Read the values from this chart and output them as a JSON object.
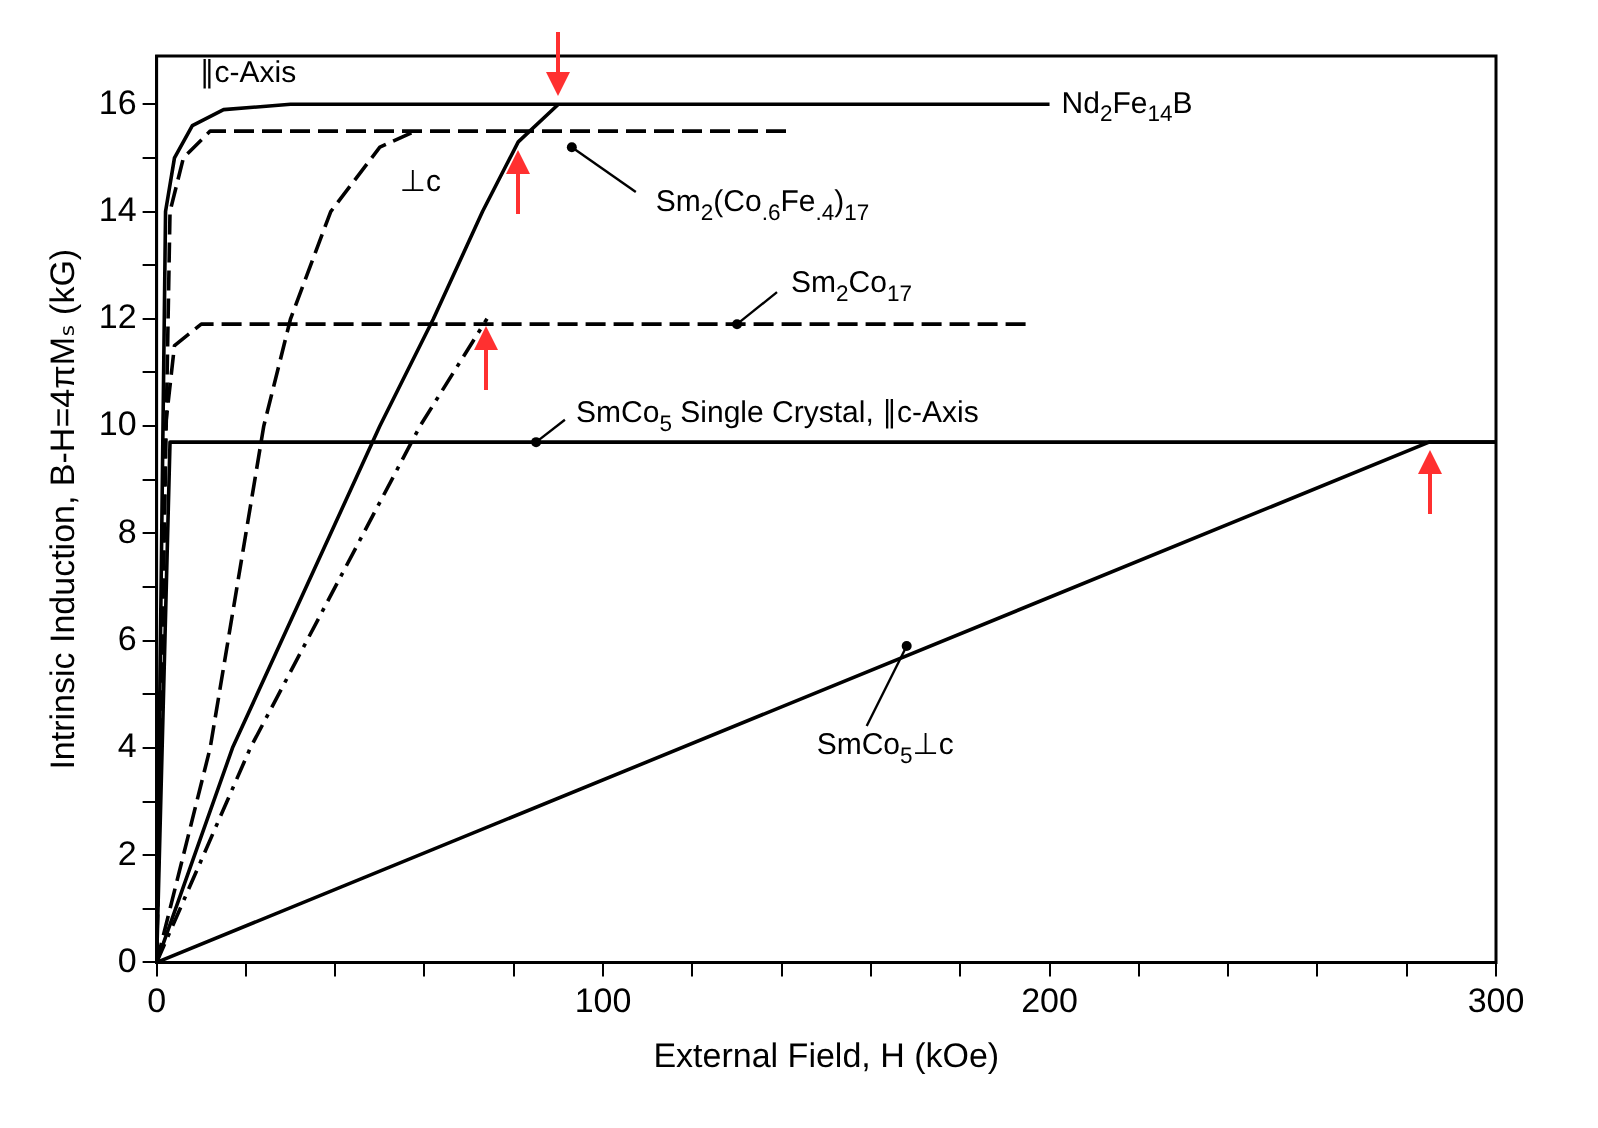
{
  "chart_data": {
    "type": "line",
    "xlabel": "External Field, H (kOe)",
    "ylabel": "Intrinsic Induction, B-H=4πMₛ (kG)",
    "xlim": [
      0,
      300
    ],
    "xticks": [
      0,
      {
        "value": 20,
        "label": null
      },
      {
        "value": 40,
        "label": null
      },
      {
        "value": 60,
        "label": null
      },
      {
        "value": 80,
        "label": null
      },
      100,
      {
        "value": 120,
        "label": null
      },
      {
        "value": 140,
        "label": null
      },
      {
        "value": 160,
        "label": null
      },
      {
        "value": 180,
        "label": null
      },
      200,
      {
        "value": 220,
        "label": null
      },
      {
        "value": 240,
        "label": null
      },
      {
        "value": 260,
        "label": null
      },
      {
        "value": 280,
        "label": null
      },
      300
    ],
    "ylim": [
      0,
      16.9
    ],
    "yticks": [
      0,
      {
        "value": 1,
        "label": null
      },
      2,
      {
        "value": 3,
        "label": null
      },
      4,
      {
        "value": 5,
        "label": null
      },
      6,
      {
        "value": 7,
        "label": null
      },
      8,
      {
        "value": 9,
        "label": null
      },
      10,
      {
        "value": 11,
        "label": null
      },
      12,
      {
        "value": 13,
        "label": null
      },
      14,
      {
        "value": 15,
        "label": null
      },
      16
    ],
    "grid": false,
    "legend": false,
    "marker": "none",
    "series": [
      {
        "color": "#000000",
        "line_style": "solid",
        "x": [
          0,
          2,
          4,
          8,
          15,
          30,
          200
        ],
        "values": [
          0,
          14,
          15,
          15.6,
          15.9,
          16,
          16
        ]
      },
      {
        "color": "#000000",
        "line_style": "solid",
        "x": [
          0,
          17,
          50,
          62,
          73,
          81,
          90
        ],
        "values": [
          0,
          4,
          10,
          12,
          14,
          15.3,
          16
        ]
      },
      {
        "color": "#000000",
        "line_style": "dashed",
        "x": [
          0,
          3,
          6,
          12,
          142
        ],
        "values": [
          0,
          14,
          15,
          15.5,
          15.5
        ]
      },
      {
        "color": "#000000",
        "line_style": "dashed",
        "x": [
          0,
          12,
          24,
          30,
          39,
          50,
          58
        ],
        "values": [
          0,
          4,
          10,
          12,
          14,
          15.2,
          15.5
        ]
      },
      {
        "color": "#000000",
        "line_style": "dashed",
        "x": [
          0,
          2,
          4,
          10,
          196
        ],
        "values": [
          0,
          10,
          11.5,
          11.9,
          11.9
        ]
      },
      {
        "color": "#000000",
        "line_style": "dotted",
        "x": [
          0,
          21,
          59,
          74
        ],
        "values": [
          0,
          4,
          10,
          12
        ]
      },
      {
        "color": "#000000",
        "line_style": "solid",
        "x": [
          0,
          3,
          300
        ],
        "values": [
          0,
          9.7,
          9.7
        ]
      },
      {
        "color": "#000000",
        "line_style": "solid",
        "x": [
          0,
          285,
          300
        ],
        "values": [
          0,
          9.7,
          9.7
        ]
      }
    ],
    "annotations": [
      {
        "text": "∥c-Axis",
        "x": 15,
        "y": 15.9
      },
      {
        "text": "⊥c",
        "x": 50,
        "y": 15.2
      },
      {
        "text": "Nd$_{2}$Fe$_{14}$B",
        "x": 200,
        "y": 16
      },
      {
        "text": "Sm$_{2}$(Co$_{.6}$Fe$_{.4}$)$_{17}$",
        "x": 93,
        "y": 15.2
      },
      {
        "text": "Sm$_{2}$Co$_{17}$",
        "x": 130,
        "y": 11.9
      },
      {
        "text": "SmCo$_{5}$ Single Crystal, ∥c-Axis",
        "x": 85,
        "y": 9.7
      },
      {
        "text": "SmCo$_{5}$⊥c",
        "x": 168,
        "y": 5.9
      }
    ]
  }
}
